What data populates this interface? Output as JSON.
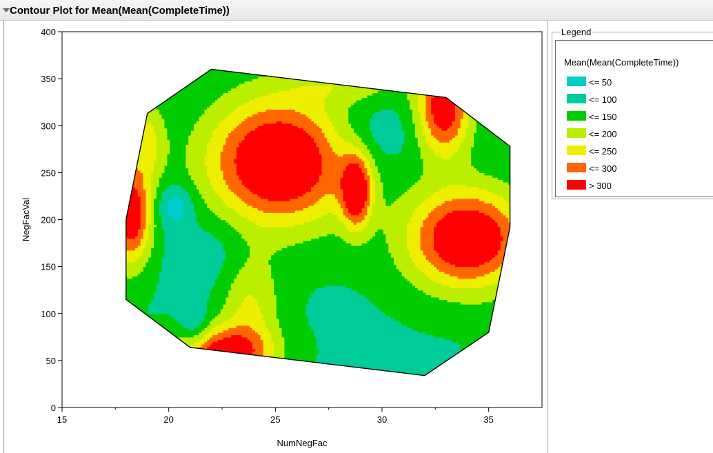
{
  "window": {
    "title": "Contour Plot for Mean(Mean(CompleteTime))"
  },
  "legend": {
    "box_title": "Legend",
    "heading": "Mean(Mean(CompleteTime))",
    "items": [
      {
        "label": "<= 50",
        "color": "#00CCCC"
      },
      {
        "label": "<= 100",
        "color": "#00CC99"
      },
      {
        "label": "<= 150",
        "color": "#00CC00"
      },
      {
        "label": "<= 200",
        "color": "#BBEE00"
      },
      {
        "label": "<= 250",
        "color": "#EEEE00"
      },
      {
        "label": "<= 300",
        "color": "#FF6600"
      },
      {
        "label": "> 300",
        "color": "#FF0000"
      }
    ]
  },
  "chart_data": {
    "type": "contour",
    "title": "",
    "xlabel": "NumNegFac",
    "ylabel": "NegFacVal",
    "xlim": [
      15,
      37.5
    ],
    "ylim": [
      0,
      400
    ],
    "x_ticks": [
      15,
      20,
      25,
      30,
      35
    ],
    "y_ticks": [
      0,
      50,
      100,
      150,
      200,
      250,
      300,
      350,
      400
    ],
    "grid": false,
    "legend_position": "right",
    "response": "Mean(Mean(CompleteTime))",
    "levels": [
      50,
      100,
      150,
      200,
      250,
      300
    ],
    "hull": [
      [
        18,
        200
      ],
      [
        19,
        313
      ],
      [
        22,
        360
      ],
      [
        33,
        330
      ],
      [
        36,
        278
      ],
      [
        36,
        192
      ],
      [
        35,
        80
      ],
      [
        32,
        34
      ],
      [
        21,
        64
      ],
      [
        18,
        115
      ]
    ],
    "regions": [
      {
        "level": "> 300",
        "center": [
          25.2,
          262
        ]
      },
      {
        "level": "> 300",
        "center": [
          34,
          180
        ]
      },
      {
        "level": "> 300",
        "center": [
          32.9,
          318
        ]
      },
      {
        "level": "> 300",
        "center": [
          28.8,
          230
        ]
      },
      {
        "level": "> 300",
        "center": [
          22.5,
          60
        ]
      },
      {
        "level": "<= 300",
        "center": [
          18.2,
          205
        ]
      },
      {
        "level": "<= 50",
        "center": [
          20.3,
          215
        ]
      },
      {
        "level": "<= 50",
        "center": [
          21.2,
          85
        ]
      }
    ]
  }
}
